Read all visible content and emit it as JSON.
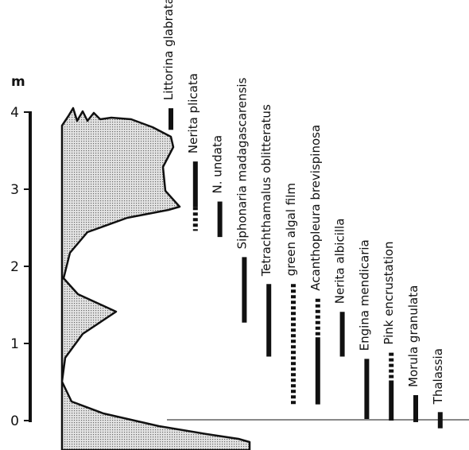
{
  "chart_data": {
    "type": "range",
    "y_label": "m",
    "ylim": [
      0,
      4
    ],
    "yticks": [
      0,
      1,
      2,
      3,
      4
    ],
    "color": "#111",
    "series": [
      {
        "name": "Littorina glabrata",
        "ranges": [
          {
            "low": 3.77,
            "high": 4.05,
            "style": "solid"
          }
        ]
      },
      {
        "name": "Nerita plicata",
        "ranges": [
          {
            "low": 2.77,
            "high": 3.36,
            "style": "solid"
          },
          {
            "low": 2.46,
            "high": 2.77,
            "style": "dashed"
          }
        ]
      },
      {
        "name": "N. undata",
        "ranges": [
          {
            "low": 2.38,
            "high": 2.84,
            "style": "solid"
          }
        ]
      },
      {
        "name": "Siphonaria madagascarensis",
        "ranges": [
          {
            "low": 1.27,
            "high": 2.12,
            "style": "solid"
          }
        ]
      },
      {
        "name": "Tetrachthamalus oblitteratus",
        "ranges": [
          {
            "low": 0.83,
            "high": 1.77,
            "style": "solid"
          }
        ]
      },
      {
        "name": "green algal film",
        "ranges": [
          {
            "low": 0.19,
            "high": 1.77,
            "style": "dashed"
          }
        ]
      },
      {
        "name": "Acanthopleura brevispinosa",
        "ranges": [
          {
            "low": 1.08,
            "high": 1.58,
            "style": "dashed"
          },
          {
            "low": 0.21,
            "high": 1.08,
            "style": "solid"
          }
        ]
      },
      {
        "name": "Nerita albicilla",
        "ranges": [
          {
            "low": 0.83,
            "high": 1.41,
            "style": "solid"
          }
        ]
      },
      {
        "name": "Engina mendicaria",
        "ranges": [
          {
            "low": 0.02,
            "high": 0.8,
            "style": "solid"
          }
        ]
      },
      {
        "name": "Pink encrustation",
        "ranges": [
          {
            "low": 0.52,
            "high": 0.88,
            "style": "dashed"
          },
          {
            "low": 0,
            "high": 0.52,
            "style": "solid"
          }
        ]
      },
      {
        "name": "Morula granulata",
        "ranges": [
          {
            "low": -0.02,
            "high": 0.33,
            "style": "solid"
          }
        ]
      },
      {
        "name": "Thalassia",
        "ranges": [
          {
            "low": -0.1,
            "high": 0.11,
            "style": "solid"
          }
        ]
      }
    ]
  }
}
